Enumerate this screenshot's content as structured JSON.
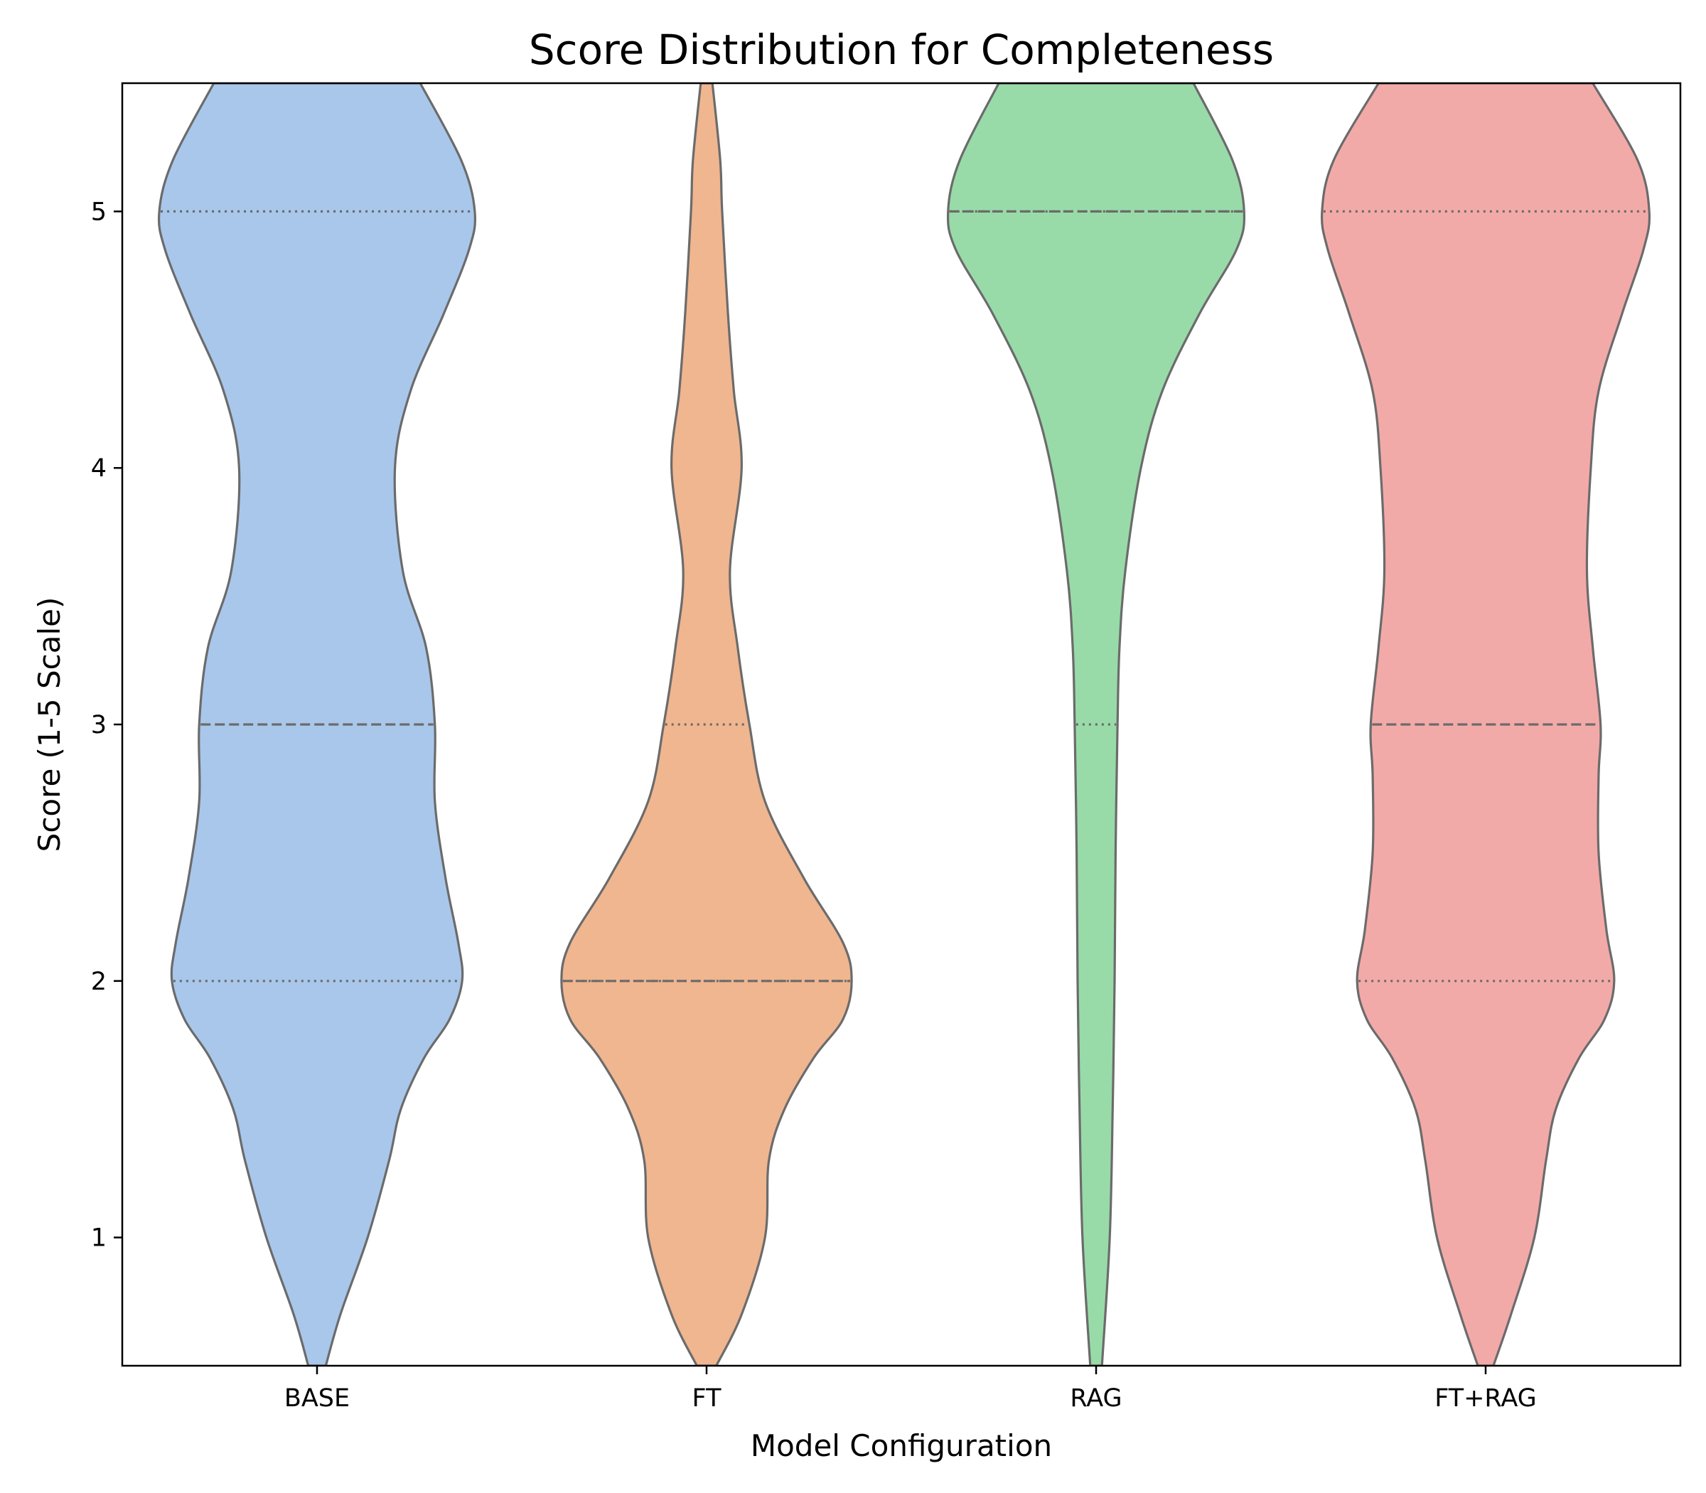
{
  "chart_data": {
    "type": "violin",
    "title": "Score Distribution for Completeness",
    "xlabel": "Model Configuration",
    "ylabel": "Score (1-5 Scale)",
    "categories": [
      "BASE",
      "FT",
      "RAG",
      "FT+RAG"
    ],
    "ylim": [
      0.5,
      5.5
    ],
    "yticks": [
      1,
      2,
      3,
      4,
      5
    ],
    "grid": false,
    "edge_color": "#6b6b6b",
    "series": [
      {
        "category": "BASE",
        "color": "#a8c7eb",
        "quartiles": {
          "q1": 2,
          "median": 3,
          "q3": 5
        },
        "density": [
          [
            0.5,
            0.045
          ],
          [
            0.7,
            0.12
          ],
          [
            1.0,
            0.26
          ],
          [
            1.3,
            0.37
          ],
          [
            1.5,
            0.43
          ],
          [
            1.7,
            0.55
          ],
          [
            1.85,
            0.68
          ],
          [
            2.0,
            0.745
          ],
          [
            2.15,
            0.725
          ],
          [
            2.4,
            0.66
          ],
          [
            2.7,
            0.605
          ],
          [
            3.0,
            0.605
          ],
          [
            3.3,
            0.56
          ],
          [
            3.6,
            0.44
          ],
          [
            4.0,
            0.4
          ],
          [
            4.3,
            0.48
          ],
          [
            4.6,
            0.65
          ],
          [
            4.85,
            0.78
          ],
          [
            5.0,
            0.81
          ],
          [
            5.2,
            0.74
          ],
          [
            5.5,
            0.53
          ]
        ]
      },
      {
        "category": "FT",
        "color": "#f0b690",
        "quartiles": {
          "q1": 2,
          "median": 2,
          "q3": 3
        },
        "density": [
          [
            0.5,
            0.05
          ],
          [
            0.7,
            0.18
          ],
          [
            1.0,
            0.3
          ],
          [
            1.3,
            0.32
          ],
          [
            1.5,
            0.4
          ],
          [
            1.7,
            0.55
          ],
          [
            1.85,
            0.7
          ],
          [
            2.0,
            0.745
          ],
          [
            2.15,
            0.7
          ],
          [
            2.4,
            0.5
          ],
          [
            2.7,
            0.3
          ],
          [
            3.0,
            0.22
          ],
          [
            3.3,
            0.16
          ],
          [
            3.6,
            0.12
          ],
          [
            4.0,
            0.18
          ],
          [
            4.3,
            0.14
          ],
          [
            4.6,
            0.11
          ],
          [
            5.0,
            0.08
          ],
          [
            5.2,
            0.07
          ],
          [
            5.5,
            0.03
          ]
        ]
      },
      {
        "category": "RAG",
        "color": "#98dba8",
        "quartiles": {
          "q1": 3,
          "median": 5,
          "q3": 5
        },
        "density": [
          [
            0.5,
            0.03
          ],
          [
            1.0,
            0.07
          ],
          [
            1.5,
            0.085
          ],
          [
            2.0,
            0.095
          ],
          [
            2.5,
            0.1
          ],
          [
            3.0,
            0.11
          ],
          [
            3.3,
            0.12
          ],
          [
            3.6,
            0.15
          ],
          [
            4.0,
            0.23
          ],
          [
            4.3,
            0.34
          ],
          [
            4.6,
            0.53
          ],
          [
            4.85,
            0.72
          ],
          [
            5.0,
            0.76
          ],
          [
            5.2,
            0.7
          ],
          [
            5.5,
            0.5
          ]
        ]
      },
      {
        "category": "FT+RAG",
        "color": "#f2aaa8",
        "quartiles": {
          "q1": 2,
          "median": 3,
          "q3": 5
        },
        "density": [
          [
            0.5,
            0.04
          ],
          [
            0.7,
            0.13
          ],
          [
            1.0,
            0.25
          ],
          [
            1.3,
            0.31
          ],
          [
            1.5,
            0.36
          ],
          [
            1.7,
            0.48
          ],
          [
            1.85,
            0.61
          ],
          [
            2.0,
            0.66
          ],
          [
            2.2,
            0.62
          ],
          [
            2.5,
            0.58
          ],
          [
            2.8,
            0.58
          ],
          [
            3.0,
            0.59
          ],
          [
            3.3,
            0.55
          ],
          [
            3.6,
            0.52
          ],
          [
            4.0,
            0.54
          ],
          [
            4.3,
            0.58
          ],
          [
            4.6,
            0.7
          ],
          [
            4.85,
            0.81
          ],
          [
            5.0,
            0.84
          ],
          [
            5.2,
            0.78
          ],
          [
            5.5,
            0.55
          ]
        ]
      }
    ]
  }
}
